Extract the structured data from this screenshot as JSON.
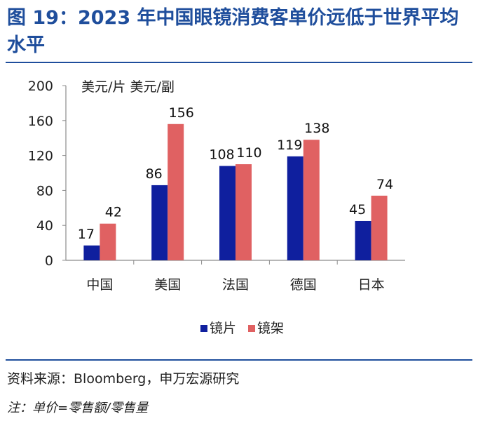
{
  "title": "图 19：2023 年中国眼镜消费客单价远低于世界平均水平",
  "source": "资料来源：Bloomberg，申万宏源研究",
  "note": "注：单价=零售额/零售量",
  "chart_data": {
    "type": "bar",
    "ylabel": "美元/片 美元/副",
    "categories": [
      "中国",
      "美国",
      "法国",
      "德国",
      "日本"
    ],
    "series": [
      {
        "name": "镜片",
        "values": [
          17,
          86,
          108,
          119,
          45
        ],
        "color": "#0f1f9e"
      },
      {
        "name": "镜架",
        "values": [
          42,
          156,
          110,
          138,
          74
        ],
        "color": "#e06162"
      }
    ],
    "ylim": [
      0,
      200
    ],
    "yticks": [
      0,
      40,
      80,
      120,
      160,
      200
    ],
    "grid": false,
    "legend": "bottom",
    "data_labels": true
  }
}
